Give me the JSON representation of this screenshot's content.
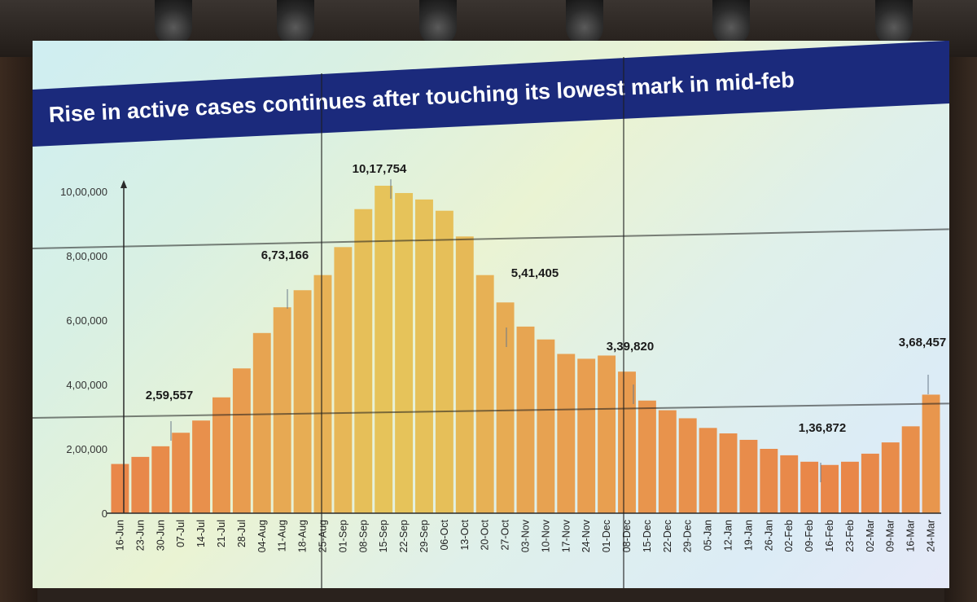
{
  "slide": {
    "title": "Rise in active cases continues after touching its lowest mark in mid-feb"
  },
  "chart_data": {
    "type": "bar",
    "title": "Rise in active cases continues after touching its lowest mark in mid-feb",
    "xlabel": "",
    "ylabel": "",
    "ylim": [
      0,
      1000000
    ],
    "y_ticks": [
      "0",
      "2,00,000",
      "4,00,000",
      "6,00,000",
      "8,00,000",
      "10,00,000"
    ],
    "categories": [
      "16-Jun",
      "23-Jun",
      "30-Jun",
      "07-Jul",
      "14-Jul",
      "21-Jul",
      "28-Jul",
      "04-Aug",
      "11-Aug",
      "18-Aug",
      "25-Aug",
      "01-Sep",
      "08-Sep",
      "15-Sep",
      "22-Sep",
      "29-Sep",
      "06-Oct",
      "13-Oct",
      "20-Oct",
      "27-Oct",
      "03-Nov",
      "10-Nov",
      "17-Nov",
      "24-Nov",
      "01-Dec",
      "08-Dec",
      "15-Dec",
      "22-Dec",
      "29-Dec",
      "05-Jan",
      "12-Jan",
      "19-Jan",
      "26-Jan",
      "02-Feb",
      "09-Feb",
      "16-Feb",
      "23-Feb",
      "02-Mar",
      "09-Mar",
      "16-Mar",
      "24-Mar"
    ],
    "values": [
      153000,
      175000,
      208000,
      250000,
      288000,
      360000,
      450000,
      560000,
      640000,
      693000,
      740000,
      827000,
      945000,
      1017754,
      995000,
      975000,
      940000,
      860000,
      740000,
      655000,
      580000,
      540000,
      495000,
      480000,
      490000,
      440000,
      350000,
      320000,
      295000,
      265000,
      248000,
      228000,
      200000,
      180000,
      160000,
      150000,
      160000,
      185000,
      220000,
      270000,
      368457
    ],
    "annotations": [
      {
        "label": "2,59,557",
        "date": "10-Jul",
        "value": 259557
      },
      {
        "label": "6,73,166",
        "date": "21-Aug",
        "value": 673166
      },
      {
        "label": "10,17,754",
        "date": "18-Sep",
        "value": 1017754
      },
      {
        "label": "5,41,405",
        "date": "01-Nov",
        "value": 541405
      },
      {
        "label": "3,39,820",
        "date": "13-Dec",
        "value": 339820
      },
      {
        "label": "1,36,872",
        "date": "15-Feb",
        "value": 136872
      },
      {
        "label": "3,68,457",
        "date": "24-Mar",
        "value": 368457
      }
    ],
    "grid": false,
    "legend": "none",
    "colors": {
      "bar_low": "#e97c46",
      "bar_high": "#e6c35a",
      "axis": "#2a2a2a",
      "title_bg": "#1b2a7c"
    }
  }
}
